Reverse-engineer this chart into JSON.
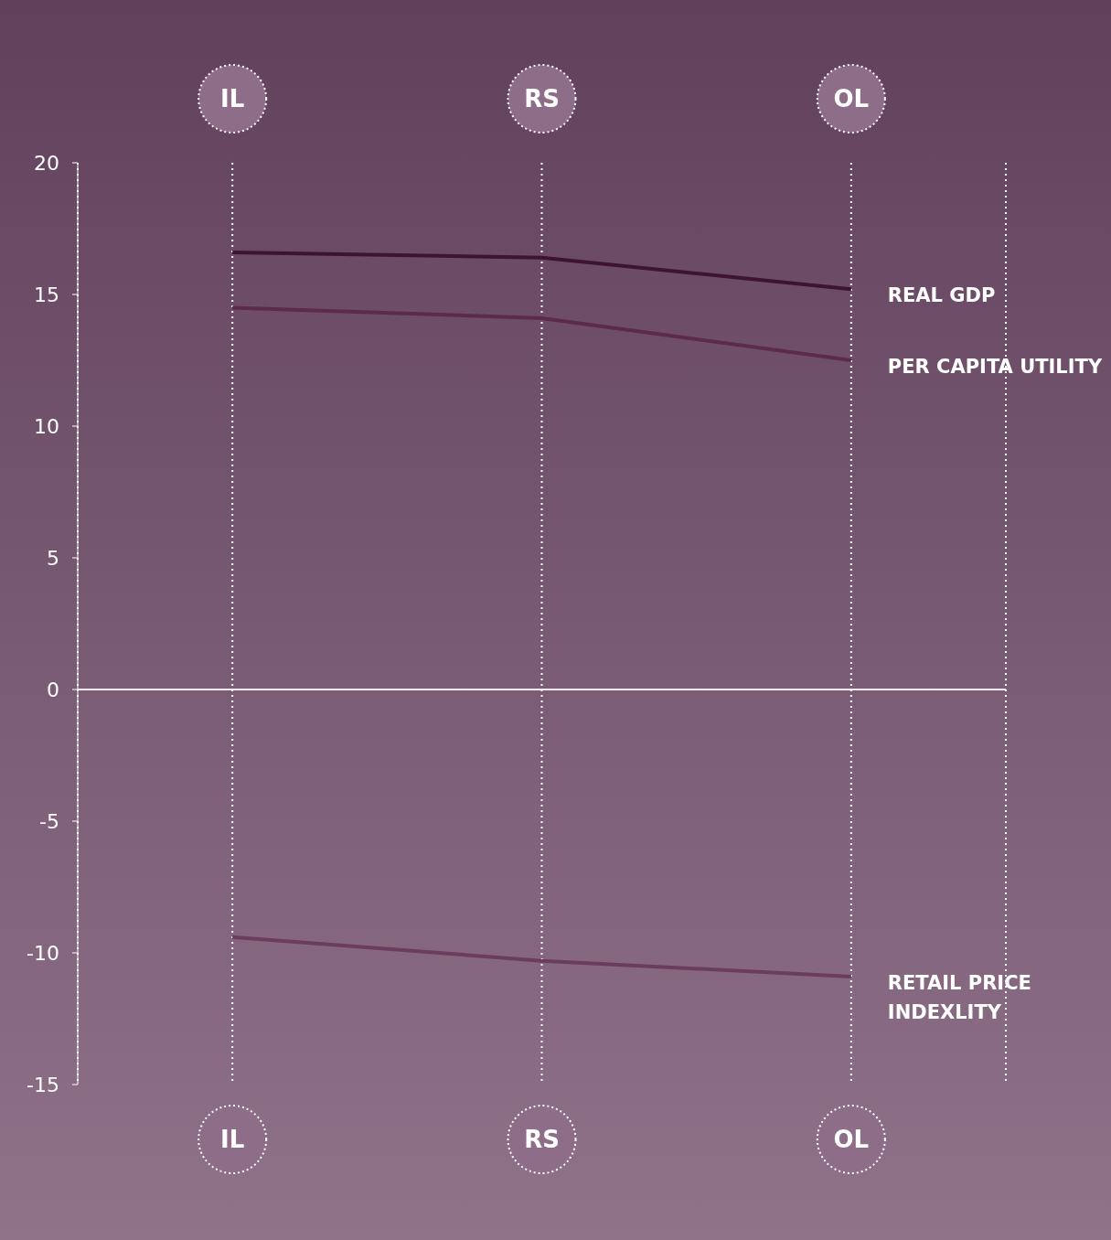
{
  "chart_data": {
    "type": "line",
    "categories": [
      "IL",
      "RS",
      "OL"
    ],
    "series": [
      {
        "name": "REAL GDP",
        "color": "#3d1530",
        "values": [
          16.6,
          16.4,
          15.2
        ]
      },
      {
        "name": "PER CAPITA UTILITY",
        "color": "#5c2a4c",
        "values": [
          14.5,
          14.1,
          12.5
        ]
      },
      {
        "name": "RETAIL PRICE INDEXLITY",
        "color": "#6a3d5e",
        "values": [
          -9.4,
          -10.3,
          -10.9
        ]
      }
    ],
    "ylim": [
      -15,
      20
    ],
    "yticks": [
      -15,
      -10,
      -5,
      0,
      5,
      10,
      15,
      20
    ],
    "ref_lines": [
      {
        "axis": "y",
        "value": 0,
        "color": "#f2eaf0"
      }
    ],
    "grid": "x",
    "marker": "none",
    "line_style": "solid"
  }
}
